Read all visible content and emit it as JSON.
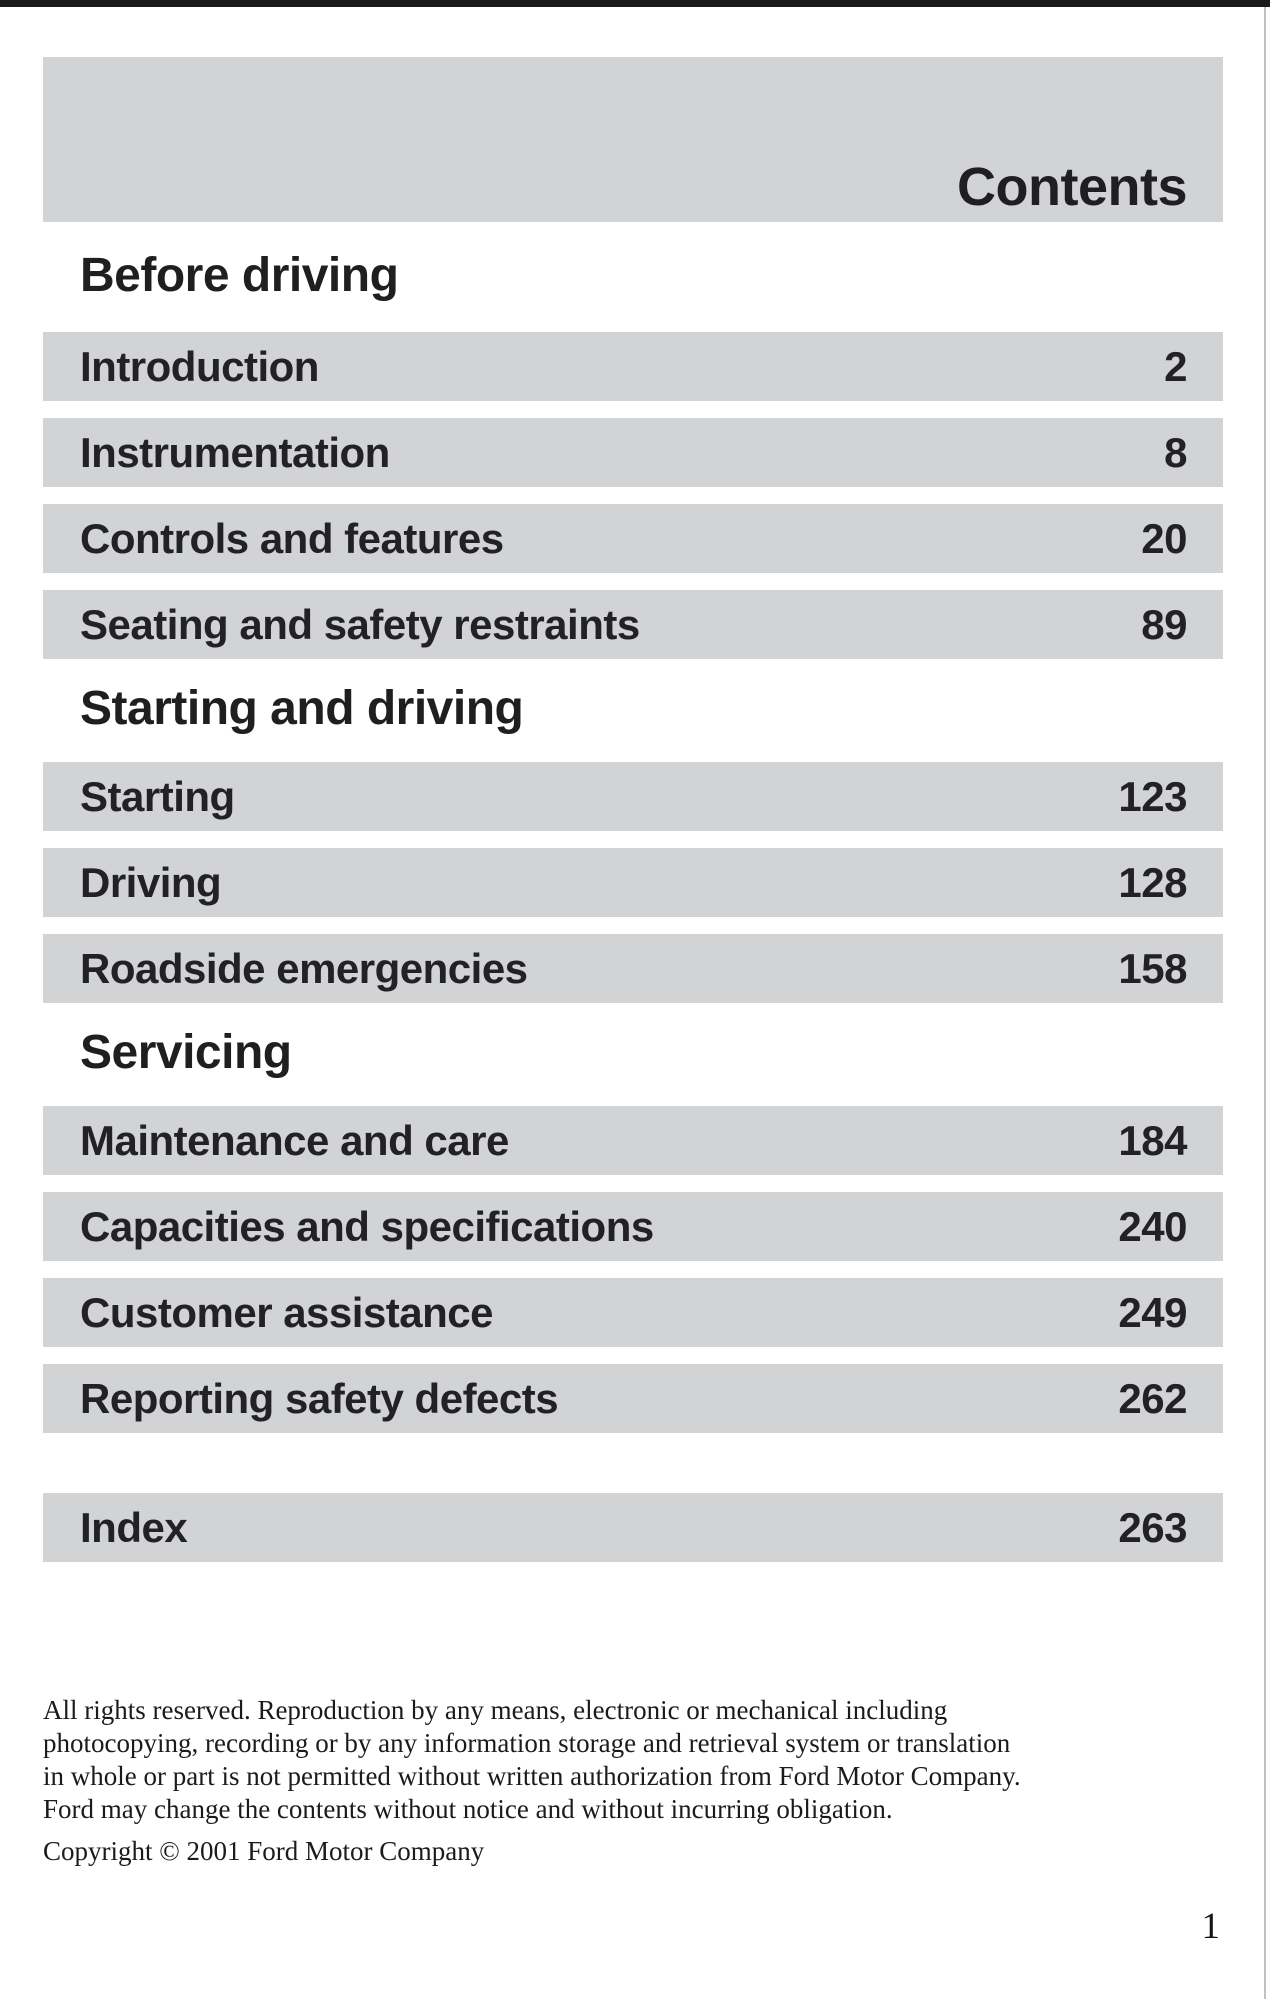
{
  "page": {
    "title": "Contents",
    "page_number": "1"
  },
  "colors": {
    "bar_gray": "#d1d3d4",
    "text_black": "#222124",
    "top_bar_black": "#1a1a1a",
    "edge_line_gray": "#bfc1c2"
  },
  "toc": {
    "sections": [
      {
        "heading": "Before driving",
        "items": [
          {
            "label": "Introduction",
            "page": "2"
          },
          {
            "label": "Instrumentation",
            "page": "8"
          },
          {
            "label": "Controls and features",
            "page": "20"
          },
          {
            "label": "Seating and safety restraints",
            "page": "89"
          }
        ]
      },
      {
        "heading": "Starting and driving",
        "items": [
          {
            "label": "Starting",
            "page": "123"
          },
          {
            "label": "Driving",
            "page": "128"
          },
          {
            "label": "Roadside emergencies",
            "page": "158"
          }
        ]
      },
      {
        "heading": "Servicing",
        "items": [
          {
            "label": "Maintenance and care",
            "page": "184"
          },
          {
            "label": "Capacities and specifications",
            "page": "240"
          },
          {
            "label": "Customer assistance",
            "page": "249"
          },
          {
            "label": "Reporting safety defects",
            "page": "262"
          }
        ]
      }
    ],
    "index": {
      "label": "Index",
      "page": "263"
    }
  },
  "footer": {
    "lines": [
      "All rights reserved. Reproduction by any means, electronic or mechanical including",
      "photocopying, recording or by any information storage and retrieval system or translation",
      "in whole or part is not permitted without written authorization from Ford Motor Company.",
      "Ford may change the contents without notice and without incurring obligation.",
      "Copyright © 2001 Ford Motor Company"
    ]
  }
}
